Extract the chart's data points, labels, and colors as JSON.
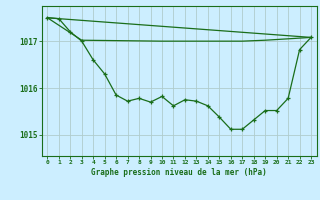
{
  "title": "Graphe pression niveau de la mer (hPa)",
  "background_color": "#cceeff",
  "grid_color": "#b0cccc",
  "line_color": "#1a6e1a",
  "xlim": [
    -0.5,
    23.5
  ],
  "ylim": [
    1014.55,
    1017.75
  ],
  "yticks": [
    1015,
    1016,
    1017
  ],
  "xticks": [
    0,
    1,
    2,
    3,
    4,
    5,
    6,
    7,
    8,
    9,
    10,
    11,
    12,
    13,
    14,
    15,
    16,
    17,
    18,
    19,
    20,
    21,
    22,
    23
  ],
  "wavy_x": [
    0,
    1,
    2,
    3,
    4,
    5,
    6,
    7,
    8,
    9,
    10,
    11,
    12,
    13,
    14,
    15,
    16,
    17,
    18,
    19,
    20,
    21,
    22,
    23
  ],
  "wavy_y": [
    1017.5,
    1017.48,
    1017.2,
    1017.0,
    1016.6,
    1016.3,
    1015.85,
    1015.72,
    1015.78,
    1015.7,
    1015.82,
    1015.62,
    1015.75,
    1015.72,
    1015.62,
    1015.38,
    1015.12,
    1015.12,
    1015.32,
    1015.52,
    1015.52,
    1015.78,
    1016.82,
    1017.08
  ],
  "line1_x": [
    0,
    1,
    23
  ],
  "line1_y": [
    1017.5,
    1017.48,
    1017.08
  ],
  "line2_x": [
    0,
    3,
    10,
    14,
    17,
    19,
    23
  ],
  "line2_y": [
    1017.5,
    1017.02,
    1017.0,
    1017.0,
    1017.0,
    1017.02,
    1017.08
  ]
}
